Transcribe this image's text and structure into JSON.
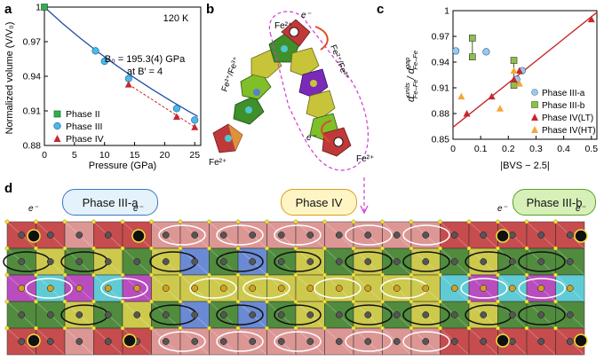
{
  "panels": {
    "a": "a",
    "b": "b",
    "c": "c",
    "d": "d"
  },
  "chart_data": [
    {
      "type": "line",
      "panel": "a",
      "xlabel": "Pressure (GPa)",
      "ylabel": "Normalized volume (V/V₀)",
      "xlim": [
        0,
        26
      ],
      "ylim": [
        0.88,
        1.0
      ],
      "xticks": [
        "0",
        "5",
        "10",
        "15",
        "20",
        "25"
      ],
      "yticks": [
        "1",
        "0.97",
        "0.94",
        "0.91",
        "0.88"
      ],
      "annotations": {
        "temp": "120 K",
        "b0": "B₀ = 195.3(4) GPa",
        "bprime": "at B′ = 4"
      },
      "legend": [
        "Phase II",
        "Phase III",
        "Phase IV"
      ],
      "legend_position": "bottom-left",
      "series": [
        {
          "name": "Phase II",
          "marker": "square",
          "color": "#2db34a",
          "x": [
            0
          ],
          "y": [
            1.0
          ]
        },
        {
          "name": "Phase III",
          "marker": "circle",
          "color": "#49b8ea",
          "x": [
            8.5,
            10,
            14,
            22,
            25
          ],
          "y": [
            0.962,
            0.953,
            0.938,
            0.912,
            0.902
          ]
        },
        {
          "name": "Phase IV",
          "marker": "triangle",
          "color": "#c8262d",
          "x": [
            14,
            22,
            25
          ],
          "y": [
            0.933,
            0.905,
            0.896
          ]
        }
      ],
      "fit_line": {
        "x": [
          0,
          3,
          6,
          9,
          12,
          15,
          18,
          21,
          24,
          25.5
        ],
        "y": [
          1.0,
          0.9859,
          0.9729,
          0.9607,
          0.9493,
          0.9386,
          0.9284,
          0.9188,
          0.9096,
          0.9052
        ]
      },
      "dashed_line": {
        "x": [
          14,
          25
        ],
        "y": [
          0.933,
          0.896
        ]
      }
    },
    {
      "type": "scatter",
      "panel": "c",
      "xlabel": "|BVS − 2.5|",
      "ylabel_main": "d",
      "ylabel_sup": "units",
      "ylabel_sub": "Fe–Fe",
      "ylabel_div": "/ d",
      "ylabel_sup2": "gap",
      "ylabel_sub2": "Fe–Fe",
      "xlim": [
        0,
        0.52
      ],
      "ylim": [
        0.85,
        1.0
      ],
      "xticks": [
        "0",
        "0.1",
        "0.2",
        "0.3",
        "0.4",
        "0.5"
      ],
      "yticks": [
        "1",
        "0.97",
        "0.94",
        "0.91",
        "0.88",
        "0.85"
      ],
      "legend": [
        "Phase III-a",
        "Phase III-b",
        "Phase IV(LT)",
        "Phase IV(HT)"
      ],
      "legend_position": "bottom-right",
      "series": [
        {
          "name": "Phase III-a",
          "marker": "circle",
          "color": "#9ec8ea",
          "x": [
            0.01,
            0.12,
            0.23,
            0.25
          ],
          "y": [
            0.953,
            0.952,
            0.92,
            0.93
          ]
        },
        {
          "name": "Phase III-b",
          "marker": "square",
          "color": "#8ec04a",
          "x": [
            0.07,
            0.07,
            0.22,
            0.22
          ],
          "y": [
            0.968,
            0.946,
            0.942,
            0.913
          ]
        },
        {
          "name": "Phase IV(LT)",
          "marker": "triangle",
          "color": "#c8262d",
          "x": [
            0.05,
            0.14,
            0.22,
            0.24,
            0.5
          ],
          "y": [
            0.88,
            0.9,
            0.92,
            0.93,
            0.99
          ]
        },
        {
          "name": "Phase IV(HT)",
          "marker": "triangle",
          "color": "#f5a53a",
          "x": [
            0.03,
            0.17,
            0.22,
            0.24
          ],
          "y": [
            0.9,
            0.886,
            0.93,
            0.915
          ]
        }
      ],
      "fit_line": {
        "x": [
          0,
          0.52
        ],
        "y": [
          0.864,
          0.998
        ]
      }
    }
  ],
  "panel_b": {
    "fe2_top": "Fe²⁺",
    "fe2_left": "Fe²⁺",
    "fe2_right": "Fe²⁺",
    "mixed_left": "Fe²⁺/Fe³⁺",
    "mixed_right": "Fe²⁺/Fe³⁺",
    "electron": "e⁻"
  },
  "panel_d": {
    "phase_left": "Phase III-a",
    "phase_mid": "Phase IV",
    "phase_right": "Phase III-b",
    "electron": "e⁻",
    "colors": {
      "red": "#c0393a",
      "pink": "#d98c8a",
      "green": "#3f7f2a",
      "yellow": "#c8c43a",
      "blue": "#5a7fcf",
      "magenta": "#b23ab8",
      "cyan": "#4fc6d0"
    }
  }
}
